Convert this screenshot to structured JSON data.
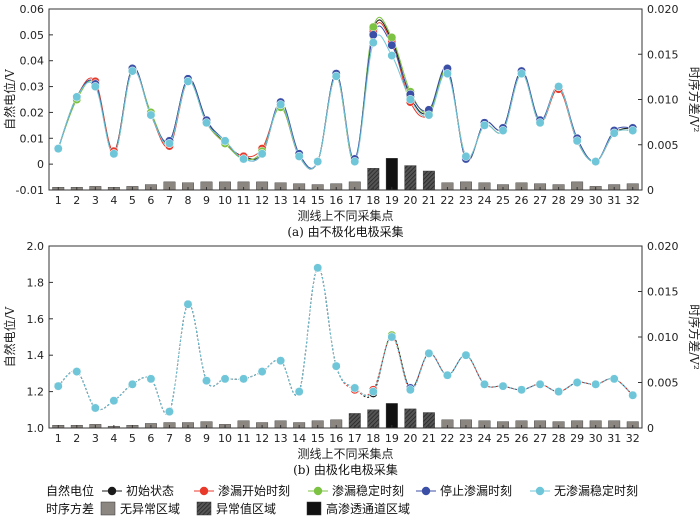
{
  "chart_data": [
    {
      "type": "line",
      "caption": "(a)  由不极化电极采集",
      "xlabel": "测线上不同采集点",
      "ylabel": "自然电位/V",
      "y2label": "时序方差/V²",
      "ylim": [
        -0.01,
        0.06
      ],
      "yticks": [
        -0.01,
        0,
        0.01,
        0.02,
        0.03,
        0.04,
        0.05,
        0.06
      ],
      "ytick_labels": [
        "-0.01",
        "0",
        "0.01",
        "0.02",
        "0.03",
        "0.04",
        "0.05",
        "0.06"
      ],
      "y2lim": [
        0,
        0.02
      ],
      "y2ticks": [
        0,
        0.005,
        0.01,
        0.015,
        0.02
      ],
      "y2tick_labels": [
        "0",
        "0.005",
        "0.010",
        "0.015",
        "0.020"
      ],
      "x": [
        1,
        2,
        3,
        4,
        5,
        6,
        7,
        8,
        9,
        10,
        11,
        12,
        13,
        14,
        15,
        16,
        17,
        18,
        19,
        20,
        21,
        22,
        23,
        24,
        25,
        26,
        27,
        28,
        29,
        30,
        31,
        32
      ],
      "series": [
        {
          "name": "初始状态",
          "color": "#1a1a1a",
          "values": [
            0.006,
            0.026,
            0.031,
            0.005,
            0.037,
            0.019,
            0.009,
            0.033,
            0.017,
            0.008,
            0.003,
            0.004,
            0.023,
            0.003,
            0.001,
            0.035,
            0.001,
            0.052,
            0.048,
            0.026,
            0.02,
            0.037,
            0.002,
            0.016,
            0.014,
            0.036,
            0.016,
            0.03,
            0.009,
            0.001,
            0.012,
            0.014
          ]
        },
        {
          "name": "渗漏开始时刻",
          "color": "#e8392b",
          "values": [
            0.006,
            0.026,
            0.032,
            0.005,
            0.036,
            0.019,
            0.007,
            0.032,
            0.016,
            0.008,
            0.003,
            0.006,
            0.022,
            0.003,
            0.001,
            0.034,
            0.001,
            0.051,
            0.047,
            0.024,
            0.019,
            0.036,
            0.003,
            0.015,
            0.013,
            0.035,
            0.016,
            0.029,
            0.009,
            0.001,
            0.012,
            0.013
          ]
        },
        {
          "name": "渗漏稳定时刻",
          "color": "#7cc243",
          "values": [
            0.006,
            0.025,
            0.031,
            0.004,
            0.036,
            0.02,
            0.008,
            0.032,
            0.016,
            0.008,
            0.002,
            0.005,
            0.022,
            0.003,
            0.001,
            0.034,
            0.001,
            0.053,
            0.049,
            0.028,
            0.02,
            0.036,
            0.003,
            0.015,
            0.013,
            0.035,
            0.016,
            0.03,
            0.009,
            0.001,
            0.012,
            0.013
          ]
        },
        {
          "name": "停止渗漏时刻",
          "color": "#3b4fa6",
          "values": [
            0.006,
            0.026,
            0.031,
            0.004,
            0.037,
            0.019,
            0.009,
            0.033,
            0.017,
            0.009,
            0.002,
            0.004,
            0.024,
            0.004,
            0.001,
            0.035,
            0.002,
            0.05,
            0.046,
            0.027,
            0.021,
            0.037,
            0.002,
            0.016,
            0.014,
            0.036,
            0.017,
            0.03,
            0.01,
            0.001,
            0.013,
            0.014
          ]
        },
        {
          "name": "无渗漏稳定时刻",
          "color": "#6fc6d8",
          "values": [
            0.006,
            0.026,
            0.03,
            0.004,
            0.036,
            0.019,
            0.008,
            0.032,
            0.016,
            0.009,
            0.002,
            0.004,
            0.023,
            0.003,
            0.001,
            0.034,
            0.001,
            0.047,
            0.042,
            0.025,
            0.019,
            0.035,
            0.003,
            0.015,
            0.013,
            0.035,
            0.016,
            0.03,
            0.009,
            0.001,
            0.012,
            0.013
          ]
        }
      ],
      "bars": {
        "name": "时序方差",
        "values": [
          0.0003,
          0.0003,
          0.0004,
          0.0003,
          0.0004,
          0.0006,
          0.0009,
          0.0008,
          0.0009,
          0.0009,
          0.0009,
          0.0009,
          0.0008,
          0.0007,
          0.0006,
          0.0007,
          0.0009,
          0.0024,
          0.0035,
          0.0027,
          0.0021,
          0.0008,
          0.0009,
          0.0008,
          0.0006,
          0.0008,
          0.0007,
          0.0006,
          0.0009,
          0.0004,
          0.0006,
          0.0007
        ],
        "classes": [
          "n",
          "n",
          "n",
          "n",
          "n",
          "n",
          "n",
          "n",
          "n",
          "n",
          "n",
          "n",
          "n",
          "n",
          "n",
          "n",
          "n",
          "a",
          "h",
          "a",
          "a",
          "n",
          "n",
          "n",
          "n",
          "n",
          "n",
          "n",
          "n",
          "n",
          "n",
          "n"
        ]
      }
    },
    {
      "type": "line",
      "caption": "(b)  由极化电极采集",
      "xlabel": "测线上不同采集点",
      "ylabel": "自然电位/V",
      "y2label": "时序方差/V²",
      "ylim": [
        1.0,
        2.0
      ],
      "yticks": [
        1.0,
        1.2,
        1.4,
        1.6,
        1.8,
        2.0
      ],
      "ytick_labels": [
        "1.0",
        "1.2",
        "1.4",
        "1.6",
        "1.8",
        "2.0"
      ],
      "y2lim": [
        0,
        0.02
      ],
      "y2ticks": [
        0,
        0.005,
        0.01,
        0.015,
        0.02
      ],
      "y2tick_labels": [
        "0",
        "0.005",
        "0.010",
        "0.015",
        "0.020"
      ],
      "x": [
        1,
        2,
        3,
        4,
        5,
        6,
        7,
        8,
        9,
        10,
        11,
        12,
        13,
        14,
        15,
        16,
        17,
        18,
        19,
        20,
        21,
        22,
        23,
        24,
        25,
        26,
        27,
        28,
        29,
        30,
        31,
        32
      ],
      "series": [
        {
          "name": "初始状态",
          "color": "#1a1a1a",
          "values": [
            1.23,
            1.31,
            1.11,
            1.15,
            1.24,
            1.27,
            1.09,
            1.68,
            1.26,
            1.27,
            1.27,
            1.31,
            1.37,
            1.2,
            1.88,
            1.34,
            1.22,
            1.19,
            1.51,
            1.22,
            1.41,
            1.29,
            1.4,
            1.24,
            1.23,
            1.21,
            1.24,
            1.2,
            1.25,
            1.24,
            1.27,
            1.18
          ]
        },
        {
          "name": "渗漏开始时刻",
          "color": "#e8392b",
          "values": [
            1.23,
            1.31,
            1.11,
            1.15,
            1.24,
            1.27,
            1.09,
            1.68,
            1.26,
            1.27,
            1.27,
            1.31,
            1.37,
            1.2,
            1.88,
            1.34,
            1.21,
            1.21,
            1.5,
            1.21,
            1.41,
            1.29,
            1.4,
            1.24,
            1.23,
            1.21,
            1.24,
            1.2,
            1.25,
            1.24,
            1.27,
            1.18
          ]
        },
        {
          "name": "渗漏稳定时刻",
          "color": "#7cc243",
          "values": [
            1.23,
            1.31,
            1.11,
            1.15,
            1.24,
            1.27,
            1.09,
            1.68,
            1.26,
            1.27,
            1.27,
            1.31,
            1.37,
            1.2,
            1.88,
            1.34,
            1.22,
            1.2,
            1.51,
            1.22,
            1.41,
            1.29,
            1.4,
            1.24,
            1.23,
            1.21,
            1.24,
            1.2,
            1.25,
            1.24,
            1.27,
            1.18
          ]
        },
        {
          "name": "停止渗漏时刻",
          "color": "#3b4fa6",
          "values": [
            1.23,
            1.31,
            1.11,
            1.15,
            1.24,
            1.27,
            1.09,
            1.68,
            1.26,
            1.27,
            1.27,
            1.31,
            1.37,
            1.2,
            1.88,
            1.34,
            1.22,
            1.2,
            1.5,
            1.22,
            1.41,
            1.29,
            1.4,
            1.24,
            1.23,
            1.21,
            1.24,
            1.2,
            1.25,
            1.24,
            1.27,
            1.18
          ]
        },
        {
          "name": "无渗漏稳定时刻",
          "color": "#6fc6d8",
          "values": [
            1.23,
            1.31,
            1.11,
            1.15,
            1.24,
            1.27,
            1.09,
            1.68,
            1.26,
            1.27,
            1.27,
            1.31,
            1.37,
            1.2,
            1.88,
            1.34,
            1.22,
            1.2,
            1.5,
            1.21,
            1.41,
            1.29,
            1.4,
            1.24,
            1.23,
            1.21,
            1.24,
            1.2,
            1.25,
            1.24,
            1.27,
            1.18
          ]
        }
      ],
      "bars": {
        "name": "时序方差",
        "values": [
          0.0003,
          0.0003,
          0.0004,
          0.0002,
          0.0003,
          0.0005,
          0.0006,
          0.0006,
          0.0007,
          0.0004,
          0.0008,
          0.0006,
          0.0008,
          0.0006,
          0.0008,
          0.0009,
          0.0016,
          0.002,
          0.0027,
          0.0021,
          0.0017,
          0.0009,
          0.0009,
          0.0008,
          0.0007,
          0.0008,
          0.0008,
          0.0007,
          0.0008,
          0.0008,
          0.0008,
          0.0007
        ],
        "classes": [
          "n",
          "n",
          "n",
          "n",
          "n",
          "n",
          "n",
          "n",
          "n",
          "n",
          "n",
          "n",
          "n",
          "n",
          "n",
          "n",
          "a",
          "a",
          "h",
          "a",
          "a",
          "n",
          "n",
          "n",
          "n",
          "n",
          "n",
          "n",
          "n",
          "n",
          "n",
          "n"
        ]
      }
    }
  ],
  "legend": {
    "potential_title": "自然电位",
    "variance_title": "时序方差",
    "potential_items": [
      {
        "label": "初始状态",
        "color": "#1a1a1a"
      },
      {
        "label": "渗漏开始时刻",
        "color": "#e8392b"
      },
      {
        "label": "渗漏稳定时刻",
        "color": "#7cc243"
      },
      {
        "label": "停止渗漏时刻",
        "color": "#3b4fa6"
      },
      {
        "label": "无渗漏稳定时刻",
        "color": "#6fc6d8"
      }
    ],
    "variance_items": [
      {
        "label": "无异常区域",
        "key": "n",
        "color": "#8c8681"
      },
      {
        "label": "异常值区域",
        "key": "a",
        "color": "#3a3a3a"
      },
      {
        "label": "高渗透通道区域",
        "key": "h",
        "color": "#111111"
      }
    ]
  }
}
